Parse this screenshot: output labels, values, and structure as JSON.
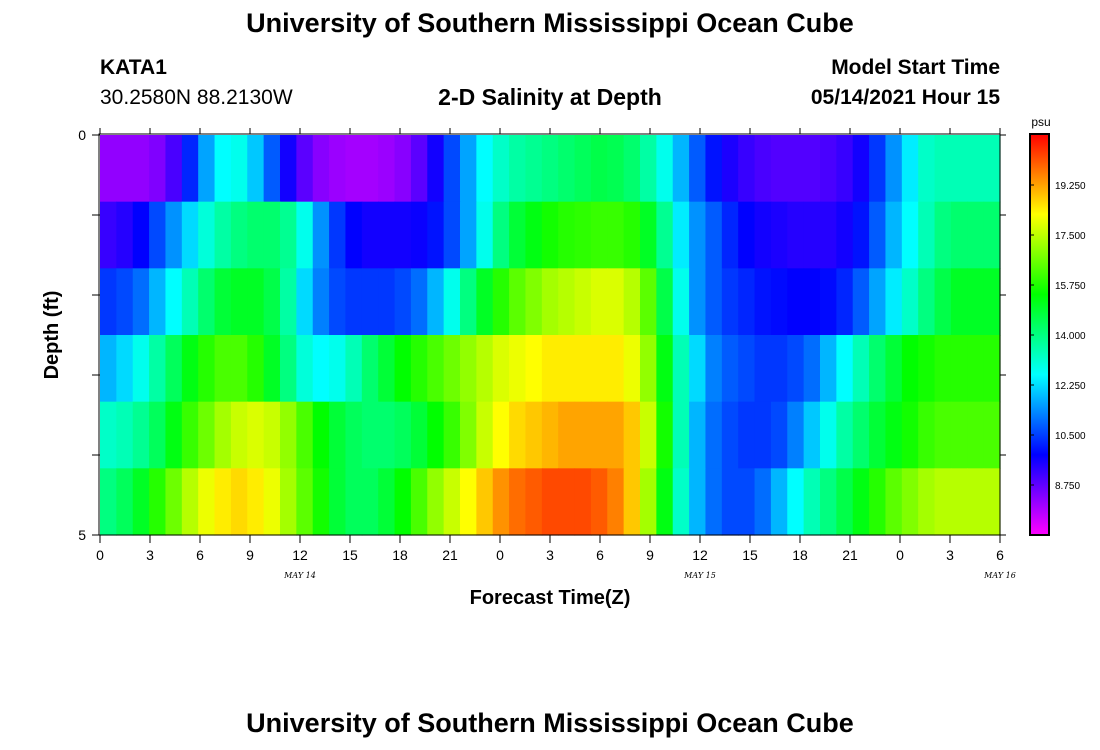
{
  "header": {
    "title": "University of Southern Mississippi Ocean Cube",
    "station": "KATA1",
    "coords": "30.2580N  88.2130W",
    "subtitle": "2-D Salinity at Depth",
    "start_label": "Model Start Time",
    "start_value": "05/14/2021 Hour 15"
  },
  "footer": {
    "title": "University of Southern Mississippi Ocean Cube"
  },
  "chart_data": {
    "type": "heatmap",
    "title": "2-D Salinity at Depth",
    "xlabel": "Forecast Time(Z)",
    "ylabel": "Depth (ft)",
    "x_tick_labels": [
      "0",
      "3",
      "6",
      "9",
      "12",
      "15",
      "18",
      "21",
      "0",
      "3",
      "6",
      "9",
      "12",
      "15",
      "18",
      "21",
      "0",
      "3",
      "6"
    ],
    "date_labels": [
      "MAY 14",
      "MAY 15",
      "MAY 16"
    ],
    "y_tick_labels": [
      "0",
      "5"
    ],
    "ylim": [
      0,
      5
    ],
    "x": [
      0,
      1,
      2,
      3,
      4,
      5,
      6,
      7,
      8,
      9,
      10,
      11,
      12,
      13,
      14,
      15,
      16,
      17,
      18,
      19,
      20,
      21,
      22,
      23,
      24,
      25,
      26,
      27,
      28,
      29,
      30,
      31,
      32,
      33,
      34,
      35,
      36,
      37,
      38,
      39,
      40,
      41,
      42,
      43,
      44,
      45,
      46,
      47,
      48,
      49,
      50,
      51,
      52,
      53,
      54
    ],
    "layers": [
      {
        "values": [
          8.2,
          8.2,
          8.2,
          8.4,
          9.0,
          10.2,
          11.6,
          12.6,
          12.8,
          12.0,
          10.8,
          9.6,
          8.8,
          8.3,
          8.1,
          8.0,
          8.0,
          8.1,
          8.3,
          8.8,
          9.6,
          10.6,
          11.6,
          12.6,
          13.2,
          13.6,
          13.8,
          14.0,
          14.2,
          14.4,
          14.6,
          14.5,
          14.2,
          13.6,
          12.8,
          11.8,
          10.8,
          10.0,
          9.5,
          9.2,
          9.0,
          8.9,
          8.9,
          8.9,
          9.0,
          9.2,
          9.6,
          10.4,
          11.4,
          12.4,
          13.2,
          13.4,
          13.4,
          13.4,
          13.4
        ]
      },
      {
        "values": [
          9.2,
          9.4,
          9.8,
          10.6,
          11.4,
          12.2,
          13.0,
          13.6,
          14.0,
          14.2,
          14.2,
          13.8,
          12.8,
          11.4,
          10.4,
          9.8,
          9.6,
          9.6,
          9.6,
          9.7,
          10.0,
          10.6,
          11.6,
          12.8,
          14.0,
          14.8,
          15.2,
          15.6,
          15.8,
          15.9,
          16.0,
          16.0,
          15.8,
          15.0,
          13.8,
          12.4,
          11.4,
          10.8,
          10.2,
          9.8,
          9.6,
          9.5,
          9.4,
          9.4,
          9.4,
          9.6,
          10.0,
          10.8,
          11.8,
          12.6,
          13.4,
          14.0,
          14.2,
          14.2,
          14.2
        ]
      },
      {
        "values": [
          10.4,
          10.6,
          11.0,
          11.8,
          12.6,
          13.4,
          14.2,
          14.8,
          15.0,
          15.0,
          14.6,
          13.6,
          12.2,
          11.2,
          10.6,
          10.4,
          10.4,
          10.4,
          10.6,
          11.0,
          11.8,
          12.8,
          14.0,
          15.0,
          15.8,
          16.4,
          16.8,
          17.2,
          17.4,
          17.6,
          17.8,
          17.8,
          17.4,
          16.4,
          14.6,
          12.8,
          11.4,
          10.8,
          10.4,
          10.2,
          10.0,
          9.9,
          9.8,
          9.8,
          9.9,
          10.2,
          10.8,
          11.6,
          12.4,
          13.2,
          14.0,
          14.6,
          15.0,
          15.0,
          15.0
        ]
      },
      {
        "values": [
          11.8,
          12.2,
          12.8,
          13.6,
          14.4,
          15.2,
          15.8,
          16.2,
          16.2,
          15.8,
          15.0,
          14.0,
          13.0,
          12.6,
          12.8,
          13.4,
          14.2,
          14.8,
          15.4,
          15.8,
          16.2,
          16.6,
          17.0,
          17.4,
          17.8,
          18.0,
          18.2,
          18.4,
          18.4,
          18.4,
          18.4,
          18.4,
          18.0,
          17.0,
          15.2,
          13.4,
          12.2,
          11.2,
          10.8,
          10.6,
          10.4,
          10.4,
          10.6,
          11.0,
          11.8,
          12.6,
          13.4,
          14.2,
          14.8,
          15.4,
          15.6,
          15.8,
          15.8,
          15.8,
          15.8
        ]
      },
      {
        "values": [
          13.2,
          13.4,
          13.8,
          14.4,
          15.2,
          16.0,
          16.6,
          17.2,
          17.6,
          17.8,
          17.6,
          17.0,
          16.2,
          15.4,
          14.8,
          14.4,
          14.2,
          14.2,
          14.4,
          14.8,
          15.4,
          16.0,
          16.8,
          17.6,
          18.2,
          18.6,
          18.8,
          19.0,
          19.2,
          19.2,
          19.2,
          19.2,
          18.8,
          17.6,
          15.6,
          13.4,
          11.8,
          11.0,
          10.6,
          10.4,
          10.4,
          10.6,
          11.2,
          12.0,
          12.8,
          13.6,
          14.2,
          14.8,
          15.2,
          15.6,
          16.0,
          16.2,
          16.2,
          16.2,
          16.2
        ]
      },
      {
        "values": [
          14.0,
          14.4,
          15.0,
          15.8,
          16.6,
          17.4,
          18.0,
          18.4,
          18.6,
          18.4,
          18.0,
          17.2,
          16.4,
          15.6,
          14.8,
          14.4,
          14.4,
          14.8,
          15.4,
          16.2,
          17.0,
          17.6,
          18.2,
          18.8,
          19.4,
          19.8,
          20.0,
          20.2,
          20.2,
          20.2,
          20.0,
          19.6,
          18.8,
          17.2,
          15.2,
          13.2,
          11.8,
          11.0,
          10.6,
          10.6,
          11.0,
          11.8,
          12.6,
          13.4,
          14.0,
          14.6,
          15.2,
          15.8,
          16.4,
          16.8,
          17.2,
          17.4,
          17.4,
          17.4,
          17.4
        ]
      }
    ],
    "colorbar": {
      "unit": "psu",
      "tick_labels": [
        "19.250",
        "17.500",
        "15.750",
        "14.000",
        "12.250",
        "10.500",
        "8.750"
      ],
      "range": [
        7.0,
        21.0
      ]
    }
  }
}
